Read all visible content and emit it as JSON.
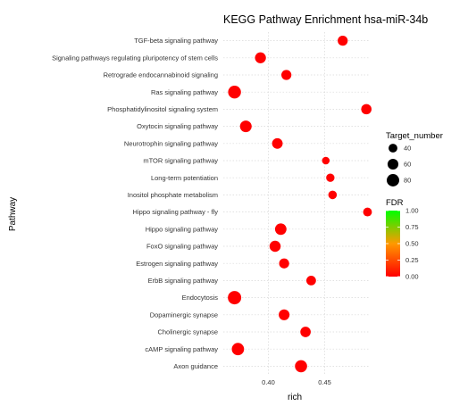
{
  "chart_data": {
    "type": "scatter",
    "title": "KEGG Pathway Enrichment  hsa-miR-34b",
    "xlabel": "rich",
    "ylabel": "Pathway",
    "xlim": [
      0.36,
      0.49
    ],
    "xticks": [
      0.4,
      0.45
    ],
    "xtick_labels": [
      "0.40",
      "0.45"
    ],
    "grid": true,
    "legend_position": "right",
    "size_legend": {
      "title": "Target_number",
      "values": [
        40,
        60,
        80
      ],
      "labels": [
        "40",
        "60",
        "80"
      ]
    },
    "color_legend": {
      "title": "FDR",
      "range": [
        0.0,
        1.0
      ],
      "ticks": [
        "1.00",
        "0.75",
        "0.50",
        "0.25",
        "0.00"
      ],
      "colors": {
        "low": "#ff0000",
        "mid": "#ff9900",
        "high": "#00ff00"
      }
    },
    "categories": [
      "TGF-beta signaling pathway",
      "Signaling pathways regulating pluripotency of stem cells",
      "Retrograde endocannabinoid signaling",
      "Ras signaling pathway",
      "Phosphatidylinositol signaling system",
      "Oxytocin signaling pathway",
      "Neurotrophin signaling pathway",
      "mTOR signaling pathway",
      "Long-term potentiation",
      "Inositol phosphate metabolism",
      "Hippo signaling pathway - fly",
      "Hippo signaling pathway",
      "FoxO signaling pathway",
      "Estrogen signaling pathway",
      "ErbB signaling pathway",
      "Endocytosis",
      "Dopaminergic synapse",
      "Cholinergic synapse",
      "cAMP signaling pathway",
      "Axon guidance"
    ],
    "points": [
      {
        "pathway": "TGF-beta signaling pathway",
        "rich": 0.466,
        "target_number": 52,
        "fdr": 0.0
      },
      {
        "pathway": "Signaling pathways regulating pluripotency of stem cells",
        "rich": 0.393,
        "target_number": 62,
        "fdr": 0.0
      },
      {
        "pathway": "Retrograde endocannabinoid signaling",
        "rich": 0.416,
        "target_number": 52,
        "fdr": 0.0
      },
      {
        "pathway": "Ras signaling pathway",
        "rich": 0.37,
        "target_number": 85,
        "fdr": 0.0
      },
      {
        "pathway": "Phosphatidylinositol signaling system",
        "rich": 0.487,
        "target_number": 55,
        "fdr": 0.0
      },
      {
        "pathway": "Oxytocin signaling pathway",
        "rich": 0.38,
        "target_number": 70,
        "fdr": 0.0
      },
      {
        "pathway": "Neurotrophin signaling pathway",
        "rich": 0.408,
        "target_number": 58,
        "fdr": 0.0
      },
      {
        "pathway": "mTOR signaling pathway",
        "rich": 0.451,
        "target_number": 30,
        "fdr": 0.0
      },
      {
        "pathway": "Long-term potentiation",
        "rich": 0.455,
        "target_number": 36,
        "fdr": 0.0
      },
      {
        "pathway": "Inositol phosphate metabolism",
        "rich": 0.457,
        "target_number": 38,
        "fdr": 0.0
      },
      {
        "pathway": "Hippo signaling pathway - fly",
        "rich": 0.488,
        "target_number": 40,
        "fdr": 0.0
      },
      {
        "pathway": "Hippo signaling pathway",
        "rich": 0.411,
        "target_number": 68,
        "fdr": 0.0
      },
      {
        "pathway": "FoxO signaling pathway",
        "rich": 0.406,
        "target_number": 64,
        "fdr": 0.0
      },
      {
        "pathway": "Estrogen signaling pathway",
        "rich": 0.414,
        "target_number": 52,
        "fdr": 0.0
      },
      {
        "pathway": "ErbB signaling pathway",
        "rich": 0.438,
        "target_number": 48,
        "fdr": 0.0
      },
      {
        "pathway": "Endocytosis",
        "rich": 0.37,
        "target_number": 92,
        "fdr": 0.0
      },
      {
        "pathway": "Dopaminergic synapse",
        "rich": 0.414,
        "target_number": 60,
        "fdr": 0.0
      },
      {
        "pathway": "Cholinergic synapse",
        "rich": 0.433,
        "target_number": 56,
        "fdr": 0.0
      },
      {
        "pathway": "cAMP signaling pathway",
        "rich": 0.373,
        "target_number": 78,
        "fdr": 0.0
      },
      {
        "pathway": "Axon guidance",
        "rich": 0.429,
        "target_number": 76,
        "fdr": 0.0
      }
    ]
  }
}
